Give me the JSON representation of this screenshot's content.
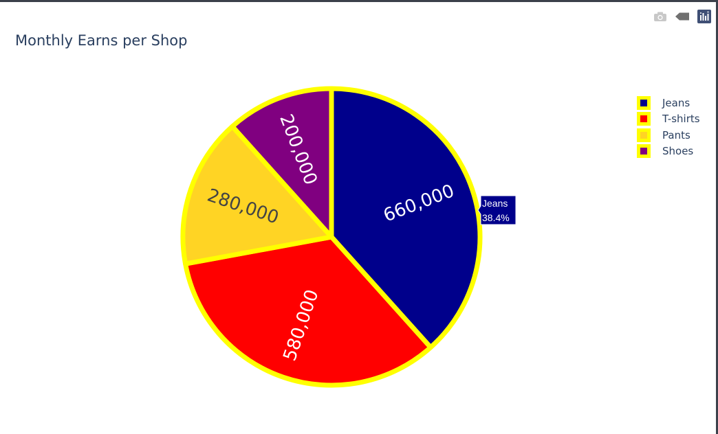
{
  "modebar": {
    "camera_icon": "camera-icon",
    "tag_icon": "tag-icon",
    "logo_icon": "plotly-logo-icon"
  },
  "chart_data": {
    "type": "pie",
    "title": "Monthly Earns per Shop",
    "labels": [
      "Jeans",
      "T-shirts",
      "Pants",
      "Shoes"
    ],
    "values": [
      660000,
      580000,
      280000,
      200000
    ],
    "value_labels": [
      "660,000",
      "580,000",
      "280,000",
      "200,000"
    ],
    "colors": [
      "#00008b",
      "#ff0000",
      "#ffd424",
      "#800080"
    ],
    "text_colors": [
      "#ffffff",
      "#ffffff",
      "#444444",
      "#ffffff"
    ],
    "line_color": "#ffff00",
    "legend_placement": "top-right",
    "hover": {
      "label": "Jeans",
      "percent": "38.4%"
    }
  }
}
